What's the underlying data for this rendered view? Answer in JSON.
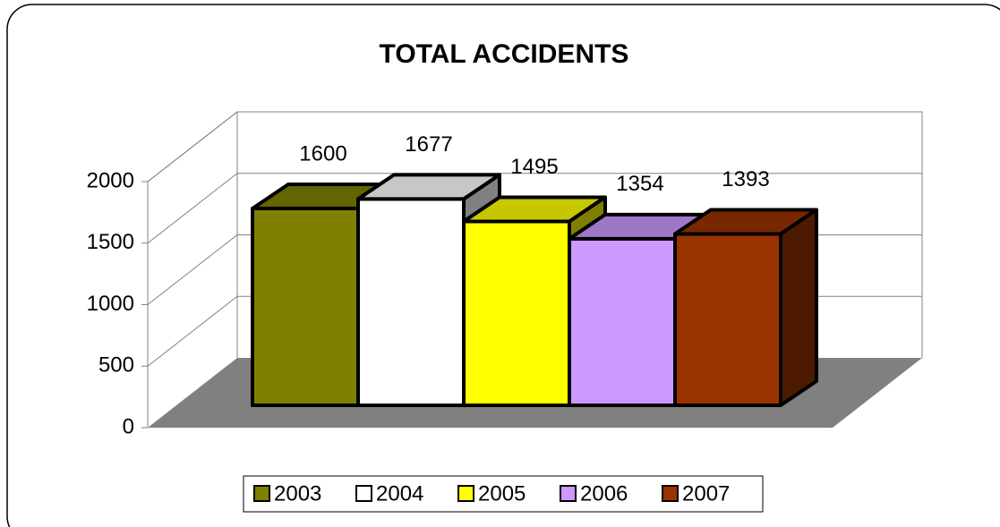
{
  "chart_data": {
    "type": "bar",
    "title": "TOTAL ACCIDENTS",
    "categories": [
      null
    ],
    "series": [
      {
        "name": "2003",
        "color": "#808000",
        "values": [
          1600
        ]
      },
      {
        "name": "2004",
        "color": "#ffffff",
        "values": [
          1677
        ]
      },
      {
        "name": "2005",
        "color": "#ffff00",
        "values": [
          1495
        ]
      },
      {
        "name": "2006",
        "color": "#cc99ff",
        "values": [
          1354
        ]
      },
      {
        "name": "2007",
        "color": "#993300",
        "values": [
          1393
        ]
      }
    ],
    "ylim": [
      0,
      2000
    ],
    "yticks": [
      0,
      500,
      1000,
      1500,
      2000
    ],
    "grid": true,
    "legend": "bottom"
  }
}
